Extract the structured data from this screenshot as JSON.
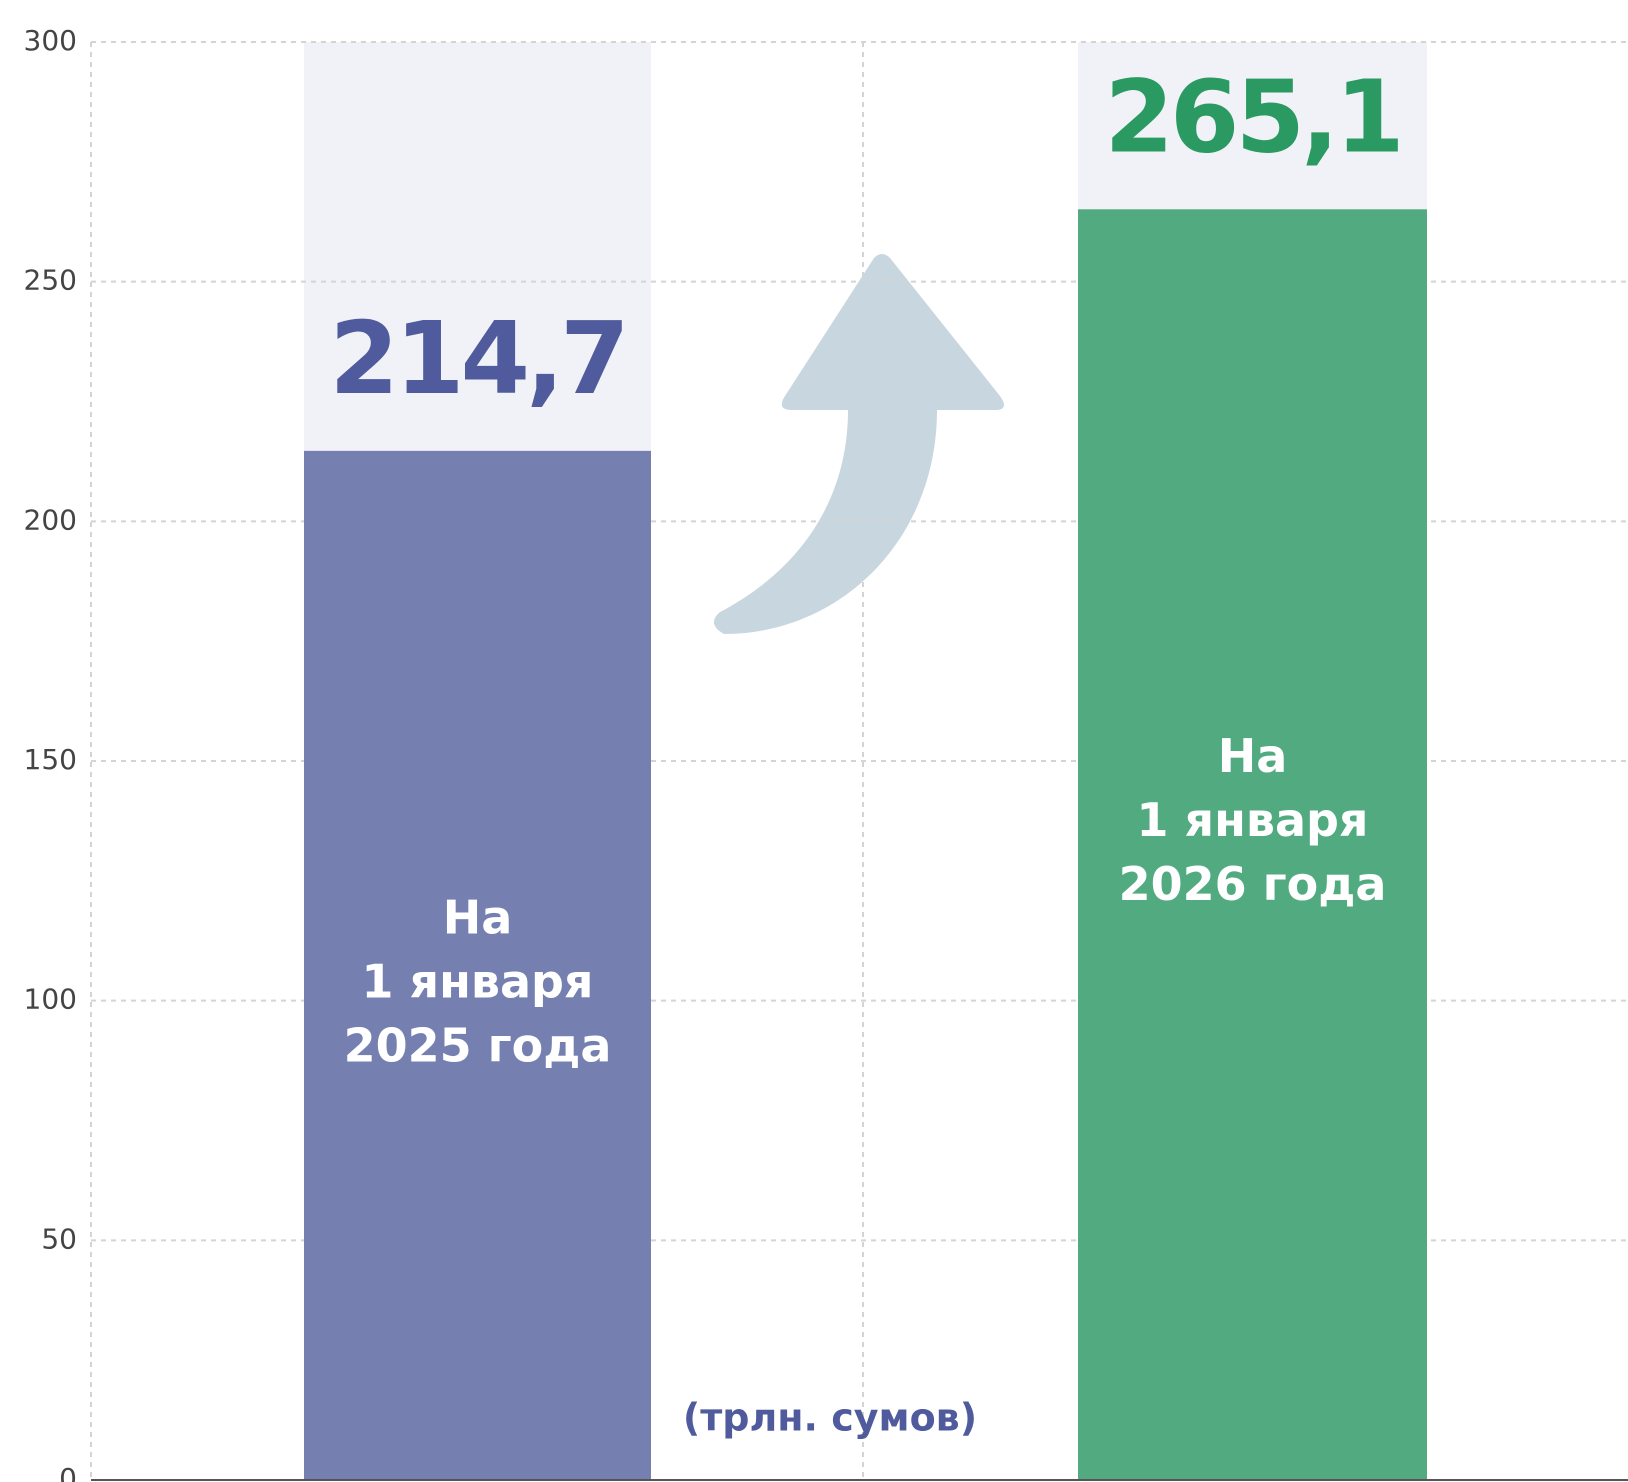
{
  "chart_data": {
    "type": "bar",
    "categories": [
      [
        "На",
        "1 января",
        "2025 года"
      ],
      [
        "На",
        "1 января",
        "2026 года"
      ]
    ],
    "values": [
      214.7,
      265.1
    ],
    "value_labels": [
      "214,7",
      "265,1"
    ],
    "colors": [
      "#7580b0",
      "#52ab80"
    ],
    "label_colors": [
      "#4f5b9c",
      "#2a9a62"
    ],
    "annotation": "(трлн. сумов)",
    "ylim": [
      0,
      300
    ],
    "yticks": [
      0,
      50,
      100,
      150,
      200,
      250,
      300
    ],
    "grid": true
  }
}
